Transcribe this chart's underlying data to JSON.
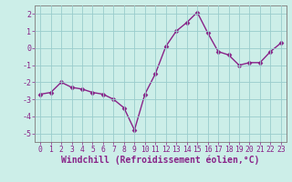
{
  "x": [
    0,
    1,
    2,
    3,
    4,
    5,
    6,
    7,
    8,
    9,
    10,
    11,
    12,
    13,
    14,
    15,
    16,
    17,
    18,
    19,
    20,
    21,
    22,
    23
  ],
  "y": [
    -2.7,
    -2.6,
    -2.0,
    -2.3,
    -2.4,
    -2.6,
    -2.7,
    -3.0,
    -3.5,
    -4.8,
    -2.7,
    -1.5,
    0.1,
    1.0,
    1.5,
    2.1,
    0.9,
    -0.2,
    -0.4,
    -1.0,
    -0.85,
    -0.85,
    -0.2,
    0.3
  ],
  "line_color": "#882288",
  "marker": "D",
  "marker_size": 2.5,
  "bg_color": "#cceee8",
  "grid_color": "#99cccc",
  "xlabel": "Windchill (Refroidissement éolien,°C)",
  "ylim": [
    -5.5,
    2.5
  ],
  "yticks": [
    -5,
    -4,
    -3,
    -2,
    -1,
    0,
    1,
    2
  ],
  "xticks": [
    0,
    1,
    2,
    3,
    4,
    5,
    6,
    7,
    8,
    9,
    10,
    11,
    12,
    13,
    14,
    15,
    16,
    17,
    18,
    19,
    20,
    21,
    22,
    23
  ],
  "xlim": [
    -0.5,
    23.5
  ],
  "tick_color": "#882288",
  "xlabel_fontsize": 7,
  "tick_fontsize": 6,
  "xtick_fontsize": 5.8,
  "line_width": 1.0,
  "spine_color": "#888888"
}
